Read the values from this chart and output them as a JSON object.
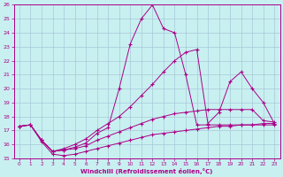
{
  "xlabel": "Windchill (Refroidissement éolien,°C)",
  "xlim": [
    -0.5,
    23.5
  ],
  "ylim": [
    15,
    26
  ],
  "xticks": [
    0,
    1,
    2,
    3,
    4,
    5,
    6,
    7,
    8,
    9,
    10,
    11,
    12,
    13,
    14,
    15,
    16,
    17,
    18,
    19,
    20,
    21,
    22,
    23
  ],
  "yticks": [
    15,
    16,
    17,
    18,
    19,
    20,
    21,
    22,
    23,
    24,
    25,
    26
  ],
  "bg_color": "#c8f0f0",
  "grid_color": "#a8c8d8",
  "line_color": "#aa0088",
  "lines": [
    {
      "x": [
        0,
        1,
        2,
        3,
        4,
        5,
        6,
        7,
        8,
        9,
        10,
        11,
        12,
        13,
        14,
        15,
        16,
        17,
        18,
        19,
        20,
        21,
        22,
        23
      ],
      "y": [
        17.3,
        17.4,
        16.2,
        15.3,
        15.2,
        15.3,
        15.5,
        15.7,
        15.9,
        16.1,
        16.3,
        16.5,
        16.7,
        16.8,
        16.9,
        17.0,
        17.1,
        17.2,
        17.3,
        17.3,
        17.4,
        17.4,
        17.5,
        17.5
      ]
    },
    {
      "x": [
        0,
        1,
        2,
        3,
        4,
        5,
        6,
        7,
        8,
        9,
        10,
        11,
        12,
        13,
        14,
        15,
        16,
        17,
        18,
        19,
        20,
        21,
        22,
        23
      ],
      "y": [
        17.3,
        17.4,
        16.3,
        15.5,
        15.6,
        15.7,
        15.9,
        16.3,
        16.6,
        16.9,
        17.2,
        17.5,
        17.8,
        18.0,
        18.2,
        18.3,
        18.4,
        18.5,
        18.5,
        18.5,
        18.5,
        18.5,
        17.7,
        17.6
      ]
    },
    {
      "x": [
        0,
        1,
        2,
        3,
        4,
        5,
        6,
        7,
        8,
        9,
        10,
        11,
        12,
        13,
        14,
        15,
        16,
        17,
        18,
        19,
        20,
        21,
        22,
        23
      ],
      "y": [
        17.3,
        17.4,
        16.3,
        15.5,
        15.6,
        15.8,
        16.1,
        16.8,
        17.2,
        20.0,
        23.2,
        25.0,
        26.0,
        24.3,
        24.0,
        21.0,
        17.4,
        17.4,
        17.4,
        17.4,
        17.4,
        17.4,
        17.4,
        17.4
      ]
    },
    {
      "x": [
        0,
        1,
        2,
        3,
        4,
        5,
        6,
        7,
        8,
        9,
        10,
        11,
        12,
        13,
        14,
        15,
        16,
        17,
        18,
        19,
        20,
        21,
        22,
        23
      ],
      "y": [
        17.3,
        17.4,
        16.3,
        15.5,
        15.7,
        16.0,
        16.4,
        17.0,
        17.5,
        18.0,
        18.7,
        19.5,
        20.3,
        21.2,
        22.0,
        22.6,
        22.8,
        17.5,
        18.3,
        20.5,
        21.2,
        20.0,
        19.0,
        17.5
      ]
    }
  ]
}
